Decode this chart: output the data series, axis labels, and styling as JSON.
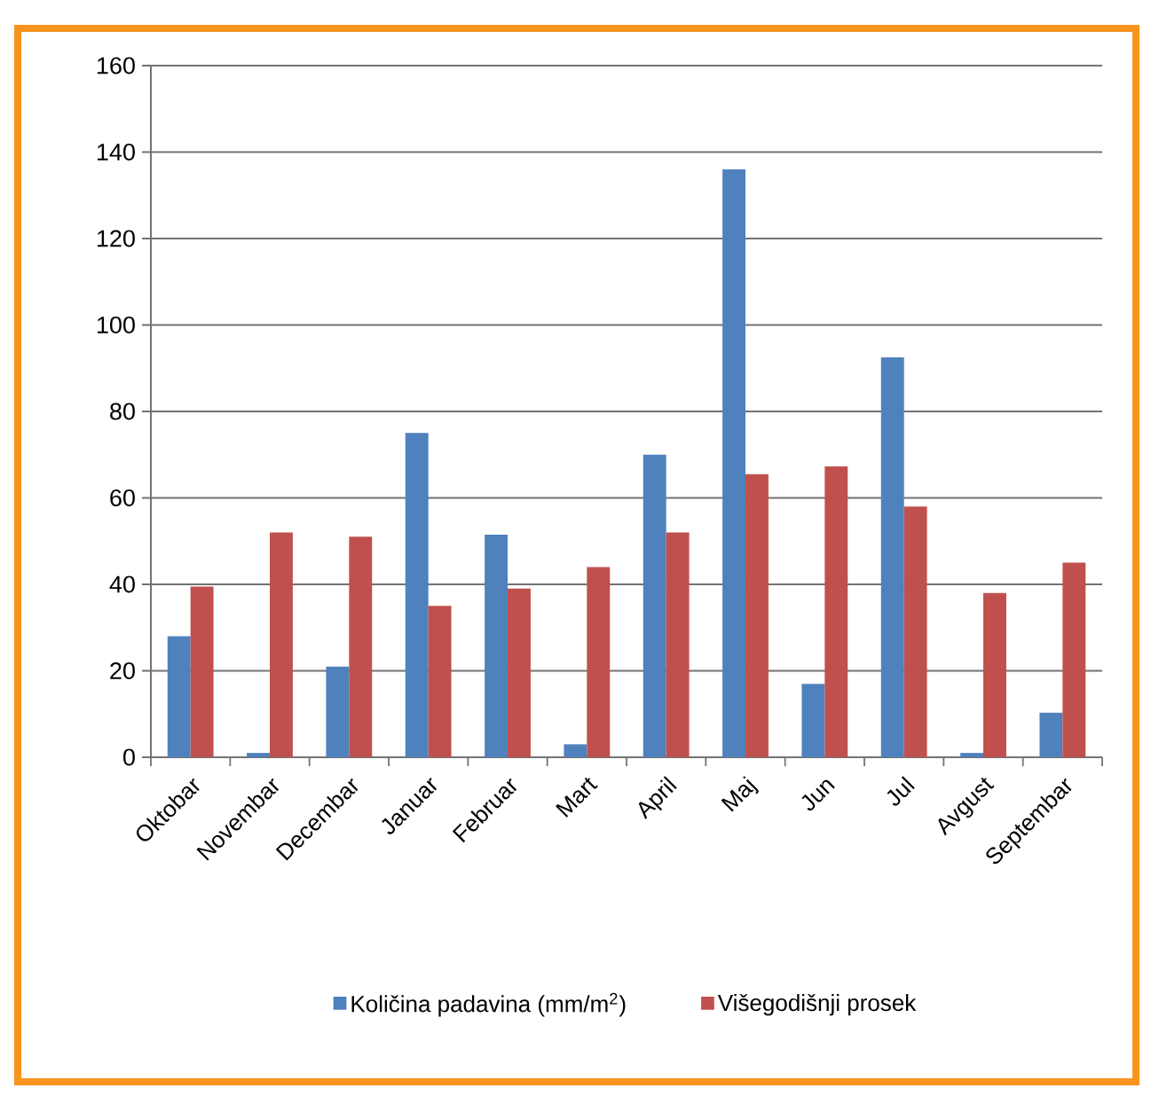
{
  "chart_data": {
    "type": "bar",
    "categories": [
      "Oktobar",
      "Novembar",
      "Decembar",
      "Januar",
      "Februar",
      "Mart",
      "April",
      "Maj",
      "Jun",
      "Jul",
      "Avgust",
      "Septembar"
    ],
    "series": [
      {
        "name": "Količina padavina (mm/m$^{2}$)",
        "color": "#4f81bd",
        "values": [
          28,
          1,
          21,
          75,
          51.5,
          3,
          70,
          136,
          17,
          92.5,
          1,
          10.3
        ]
      },
      {
        "name": "Višegodišnji prosek",
        "color": "#c0504d",
        "values": [
          39.5,
          52,
          51,
          35,
          39,
          44,
          52,
          65.5,
          67.3,
          58,
          38,
          45
        ]
      }
    ],
    "ylim": [
      0,
      160
    ],
    "yticks": [
      0,
      20,
      40,
      60,
      80,
      100,
      120,
      140,
      160
    ],
    "grid": "y",
    "legend": "bottom"
  }
}
